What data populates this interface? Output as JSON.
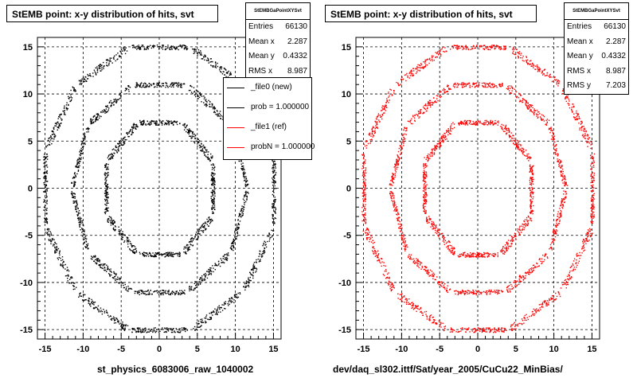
{
  "chart_data": [
    {
      "type": "scatter",
      "title": "StEMB point: x-y distribution of hits, svt",
      "xlabel": "st_physics_6083006_raw_1040002",
      "ylabel": "",
      "xlim": [
        -16,
        16
      ],
      "ylim": [
        -16,
        16
      ],
      "xticks": [
        "-15",
        "-10",
        "-5",
        "0",
        "5",
        "10",
        "15"
      ],
      "yticks": [
        "15",
        "10",
        "5",
        "0",
        "-5",
        "-10",
        "-15"
      ],
      "grid": true,
      "marker_color": "#000000",
      "series": [
        {
          "name": "_file0 (new)",
          "description": "three concentric octagonal rings of hits (radii ~7, ~11, ~15 cm)",
          "rings": [
            7,
            11,
            15
          ]
        }
      ],
      "stats": {
        "header": "StEMBGaPointXYSvt",
        "entries": [
          "Entries",
          "66130"
        ],
        "mean_x": [
          "Mean x",
          "2.287"
        ],
        "mean_y": [
          "Mean y",
          "0.4332"
        ],
        "rms_x": [
          "RMS x",
          "8.987"
        ]
      },
      "legend": {
        "placement": "top-right",
        "entries": [
          {
            "label": "_file0 (new)",
            "color": "#000000"
          },
          {
            "label": "prob = 1.000000",
            "color": "#000000"
          },
          {
            "label": "_file1 (ref)",
            "color": "#ff0000"
          },
          {
            "label": "probN = 1.000000",
            "color": "#ff0000"
          }
        ]
      }
    },
    {
      "type": "scatter",
      "title": "StEMB point: x-y distribution of hits, svt",
      "xlabel": "dev/daq_sl302.ittf/Sat/year_2005/CuCu22_MinBias/",
      "ylabel": "",
      "xlim": [
        -16,
        16
      ],
      "ylim": [
        -16,
        16
      ],
      "xticks": [
        "-15",
        "-10",
        "-5",
        "0",
        "5",
        "10",
        "15"
      ],
      "yticks": [
        "15",
        "10",
        "5",
        "0",
        "-5",
        "-10",
        "-15"
      ],
      "grid": true,
      "marker_color": "#ff0000",
      "series": [
        {
          "name": "_file1 (ref)",
          "description": "three concentric octagonal rings of hits (radii ~7, ~11, ~15 cm)",
          "rings": [
            7,
            11,
            15
          ]
        }
      ],
      "stats": {
        "header": "StEMBGaPointXYSvt",
        "entries": [
          "Entries",
          "66130"
        ],
        "mean_x": [
          "Mean x",
          "2.287"
        ],
        "mean_y": [
          "Mean y",
          "0.4332"
        ],
        "rms_x": [
          "RMS x",
          "8.987"
        ],
        "rms_y": [
          "RMS y",
          "7.203"
        ]
      }
    }
  ]
}
